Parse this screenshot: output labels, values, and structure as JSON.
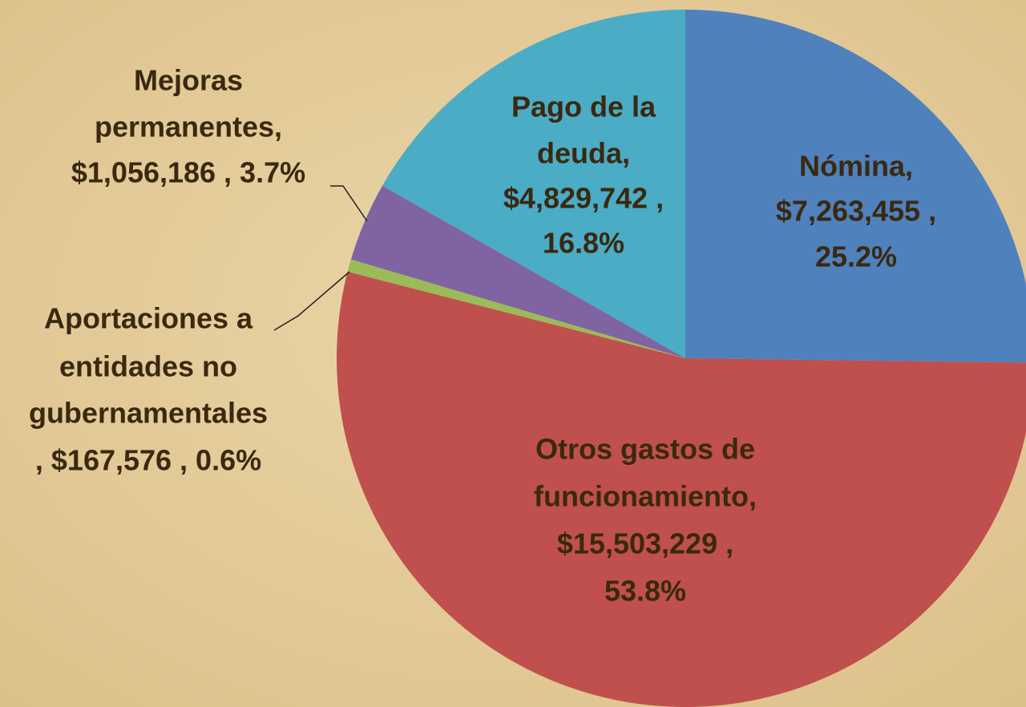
{
  "chart_data": {
    "type": "pie",
    "categories": [
      "Nómina",
      "Otros gastos de funcionamiento",
      "Aportaciones a entidades no gubernamentales",
      "Mejoras permanentes",
      "Pago de la deuda"
    ],
    "values": [
      7263455,
      15503229,
      167576,
      1056186,
      4829742
    ],
    "percentages": [
      25.2,
      53.8,
      0.6,
      3.7,
      16.8
    ],
    "value_labels": [
      [
        "Nómina,",
        "$7,263,455 ,",
        "25.2%"
      ],
      [
        "Otros gastos de",
        "funcionamiento,",
        "$15,503,229 ,",
        "53.8%"
      ],
      [
        "Aportaciones a",
        "entidades no",
        "gubernamentales",
        ", $167,576 , 0.6%"
      ],
      [
        "Mejoras",
        "permanentes,",
        "$1,056,186 , 3.7%"
      ],
      [
        "Pago de la",
        "deuda,",
        "$4,829,742 ,",
        "16.8%"
      ]
    ],
    "colors": [
      "#4f81bd",
      "#c0504d",
      "#9bbb59",
      "#8064a2",
      "#4bacc6"
    ]
  }
}
